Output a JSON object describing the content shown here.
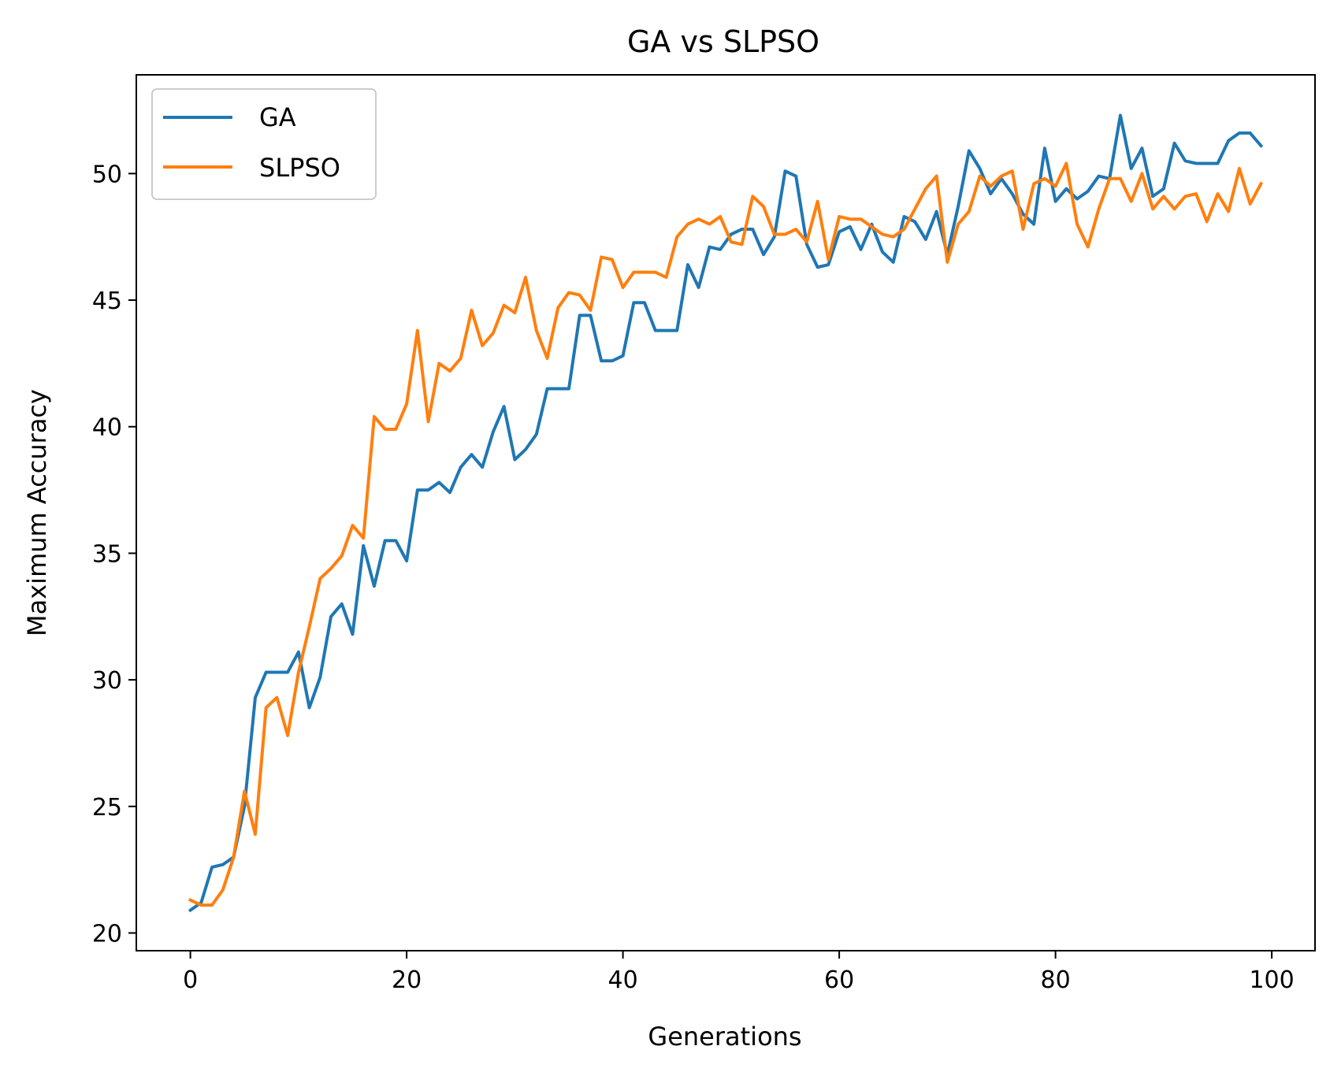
{
  "chart_data": {
    "type": "line",
    "title": "GA vs SLPSO",
    "xlabel": "Generations",
    "ylabel": "Maximum Accuracy",
    "xlim": [
      -5,
      104
    ],
    "ylim": [
      19.3,
      53.9
    ],
    "xticks": [
      0,
      20,
      40,
      60,
      80,
      100
    ],
    "yticks": [
      20,
      25,
      30,
      35,
      40,
      45,
      50
    ],
    "grid": false,
    "legend": "top-left",
    "series": [
      {
        "name": "GA",
        "color": "#1f77b4",
        "x": [
          0,
          1,
          2,
          3,
          4,
          5,
          6,
          7,
          8,
          9,
          10,
          11,
          12,
          13,
          14,
          15,
          16,
          17,
          18,
          19,
          20,
          21,
          22,
          23,
          24,
          25,
          26,
          27,
          28,
          29,
          30,
          31,
          32,
          33,
          34,
          35,
          36,
          37,
          38,
          39,
          40,
          41,
          42,
          43,
          44,
          45,
          46,
          47,
          48,
          49,
          50,
          51,
          52,
          53,
          54,
          55,
          56,
          57,
          58,
          59,
          60,
          61,
          62,
          63,
          64,
          65,
          66,
          67,
          68,
          69,
          70,
          71,
          72,
          73,
          74,
          75,
          76,
          77,
          78,
          79,
          80,
          81,
          82,
          83,
          84,
          85,
          86,
          87,
          88,
          89,
          90,
          91,
          92,
          93,
          94,
          95,
          96,
          97,
          98,
          99
        ],
        "values": [
          20.9,
          21.2,
          22.6,
          22.7,
          23.0,
          25.0,
          29.3,
          30.3,
          30.3,
          30.3,
          31.1,
          28.9,
          30.1,
          32.5,
          33.0,
          31.8,
          35.3,
          33.7,
          35.5,
          35.5,
          34.7,
          37.5,
          37.5,
          37.8,
          37.4,
          38.4,
          38.9,
          38.4,
          39.8,
          40.8,
          38.7,
          39.1,
          39.7,
          41.5,
          41.5,
          41.5,
          44.4,
          44.4,
          42.6,
          42.6,
          42.8,
          44.9,
          44.9,
          43.8,
          43.8,
          43.8,
          46.4,
          45.5,
          47.1,
          47.0,
          47.6,
          47.8,
          47.8,
          46.8,
          47.5,
          50.1,
          49.9,
          47.2,
          46.3,
          46.4,
          47.7,
          47.9,
          47.0,
          48.0,
          46.9,
          46.5,
          48.3,
          48.1,
          47.4,
          48.5,
          46.8,
          48.7,
          50.9,
          50.2,
          49.2,
          49.8,
          49.2,
          48.4,
          48.0,
          51.0,
          48.9,
          49.4,
          49.0,
          49.3,
          49.9,
          49.8,
          52.3,
          50.2,
          51.0,
          49.1,
          49.4,
          51.2,
          50.5,
          50.4,
          50.4,
          50.4,
          51.3,
          51.6,
          51.6,
          51.1
        ]
      },
      {
        "name": "SLPSO",
        "color": "#ff7f0e",
        "x": [
          0,
          1,
          2,
          3,
          4,
          5,
          6,
          7,
          8,
          9,
          10,
          11,
          12,
          13,
          14,
          15,
          16,
          17,
          18,
          19,
          20,
          21,
          22,
          23,
          24,
          25,
          26,
          27,
          28,
          29,
          30,
          31,
          32,
          33,
          34,
          35,
          36,
          37,
          38,
          39,
          40,
          41,
          42,
          43,
          44,
          45,
          46,
          47,
          48,
          49,
          50,
          51,
          52,
          53,
          54,
          55,
          56,
          57,
          58,
          59,
          60,
          61,
          62,
          63,
          64,
          65,
          66,
          67,
          68,
          69,
          70,
          71,
          72,
          73,
          74,
          75,
          76,
          77,
          78,
          79,
          80,
          81,
          82,
          83,
          84,
          85,
          86,
          87,
          88,
          89,
          90,
          91,
          92,
          93,
          94,
          95,
          96,
          97,
          98,
          99
        ],
        "values": [
          21.3,
          21.1,
          21.1,
          21.7,
          23.0,
          25.6,
          23.9,
          28.9,
          29.3,
          27.8,
          30.3,
          32.1,
          34.0,
          34.4,
          34.9,
          36.1,
          35.6,
          40.4,
          39.9,
          39.9,
          40.9,
          43.8,
          40.2,
          42.5,
          42.2,
          42.7,
          44.6,
          43.2,
          43.7,
          44.8,
          44.5,
          45.9,
          43.8,
          42.7,
          44.7,
          45.3,
          45.2,
          44.6,
          46.7,
          46.6,
          45.5,
          46.1,
          46.1,
          46.1,
          45.9,
          47.5,
          48.0,
          48.2,
          48.0,
          48.3,
          47.3,
          47.2,
          49.1,
          48.7,
          47.6,
          47.6,
          47.8,
          47.3,
          48.9,
          46.6,
          48.3,
          48.2,
          48.2,
          47.9,
          47.6,
          47.5,
          47.8,
          48.6,
          49.4,
          49.9,
          46.5,
          48.0,
          48.5,
          49.9,
          49.5,
          49.9,
          50.1,
          47.8,
          49.6,
          49.8,
          49.5,
          50.4,
          48.0,
          47.1,
          48.6,
          49.8,
          49.8,
          48.9,
          50.0,
          48.6,
          49.1,
          48.6,
          49.1,
          49.2,
          48.1,
          49.2,
          48.5,
          50.2,
          48.8,
          49.6
        ]
      }
    ]
  }
}
